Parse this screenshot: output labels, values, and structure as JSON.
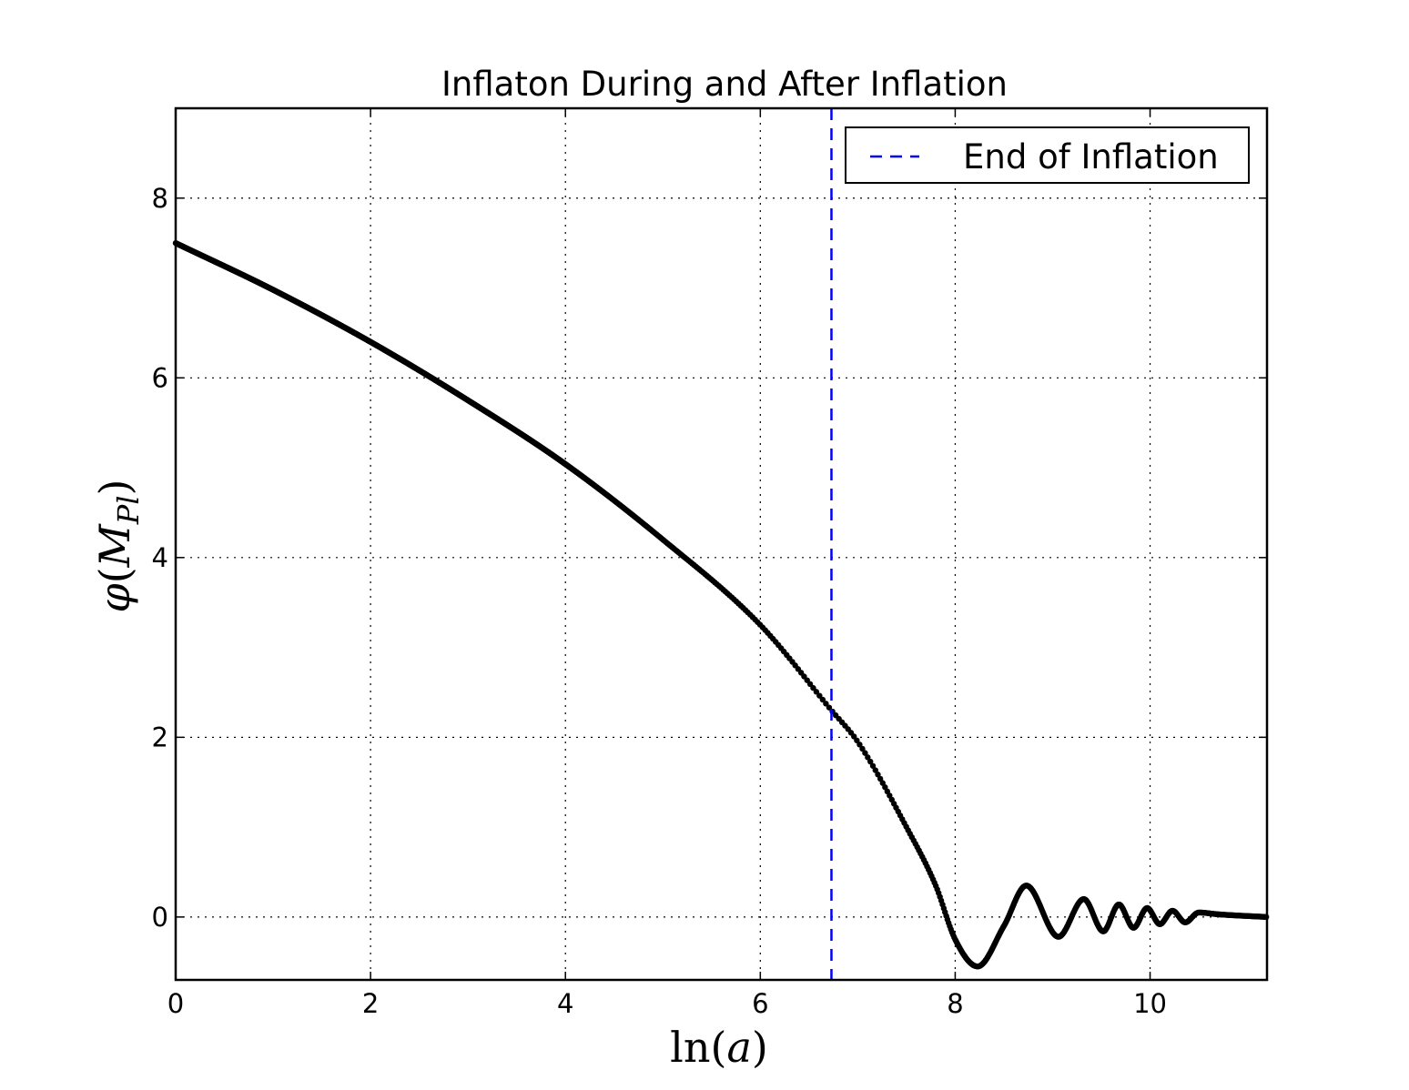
{
  "chart_data": {
    "type": "scatter",
    "title": "Inflaton During and After Inflation",
    "xlabel": {
      "func": "ln",
      "open": "(",
      "var": "a",
      "close": ")"
    },
    "ylabel": {
      "symbol": "φ",
      "open": "(",
      "var": "M",
      "sub": "Pl",
      "close": ")"
    },
    "xlim": [
      0,
      11.2
    ],
    "ylim": [
      -0.7,
      9.0
    ],
    "xticks": [
      0,
      2,
      4,
      6,
      8,
      10
    ],
    "yticks": [
      0,
      2,
      4,
      6,
      8
    ],
    "xtick_labels": [
      "0",
      "2",
      "4",
      "6",
      "8",
      "10"
    ],
    "ytick_labels": [
      "0",
      "2",
      "4",
      "6",
      "8"
    ],
    "grid": true,
    "grid_style": "dotted",
    "legend": {
      "position": "top-right",
      "entries": [
        {
          "label": "End of Inflation",
          "color": "#0000ff",
          "style": "dashed"
        }
      ]
    },
    "end_of_inflation_x": 6.73,
    "series_color": "#000000",
    "series": [
      {
        "anchors_x": [
          0,
          1,
          2,
          3,
          4,
          5,
          6,
          6.73,
          7,
          7.5,
          7.8,
          8.0,
          8.23,
          8.5,
          8.73,
          9.06,
          9.32,
          9.52,
          9.68,
          9.83,
          9.97,
          10.1,
          10.23,
          10.36,
          10.5,
          10.7,
          11.2
        ],
        "anchors_y": [
          7.5,
          6.98,
          6.4,
          5.75,
          5.04,
          4.2,
          3.25,
          2.3,
          1.95,
          1.0,
          0.35,
          -0.25,
          -0.55,
          -0.1,
          0.35,
          -0.22,
          0.2,
          -0.16,
          0.14,
          -0.12,
          0.1,
          -0.08,
          0.07,
          -0.06,
          0.05,
          0.03,
          0.0
        ]
      }
    ]
  }
}
